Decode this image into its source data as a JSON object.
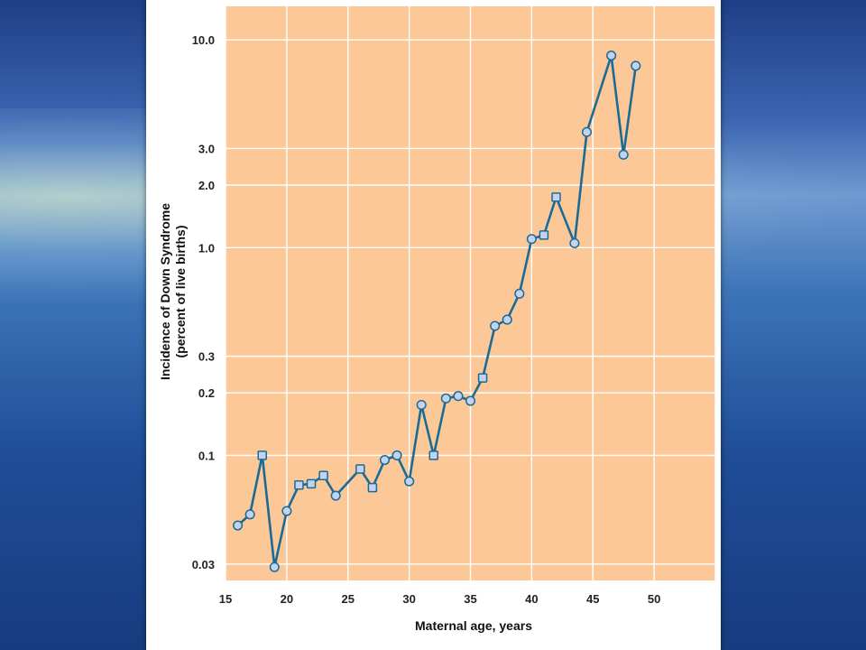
{
  "chart_data": {
    "type": "line",
    "xlabel": "Maternal age, years",
    "ylabel": "Incidence of Down Syndrome",
    "ylabel_sub": "(percent of live births)",
    "y_scale": "log",
    "xlim": [
      15,
      55
    ],
    "ylim": [
      0.025,
      14.5
    ],
    "x_ticks": [
      15,
      20,
      25,
      30,
      35,
      40,
      45,
      50
    ],
    "x_tick_labels": [
      "15",
      "20",
      "25",
      "30",
      "35",
      "40",
      "45",
      "50"
    ],
    "y_ticks": [
      0.03,
      0.1,
      0.2,
      0.3,
      1.0,
      2.0,
      3.0,
      10.0
    ],
    "y_tick_labels": [
      "0.03",
      "0.1",
      "0.2",
      "0.3",
      "1.0",
      "2.0",
      "3.0",
      "10.0"
    ],
    "grid": true,
    "colors": {
      "plot_background": "#fcc898",
      "line": "#1a6b96",
      "marker_fill": "#c4d2ee",
      "marker_stroke": "#1a6b96"
    },
    "series": [
      {
        "marker": "circle",
        "points": [
          {
            "x": 16.0,
            "y": 0.046
          },
          {
            "x": 17.0,
            "y": 0.052
          },
          {
            "x": 19.0,
            "y": 0.029
          },
          {
            "x": 20.0,
            "y": 0.054
          },
          {
            "x": 24.0,
            "y": 0.064
          },
          {
            "x": 28.0,
            "y": 0.095
          },
          {
            "x": 29.0,
            "y": 0.1
          },
          {
            "x": 30.0,
            "y": 0.075
          },
          {
            "x": 31.0,
            "y": 0.175
          },
          {
            "x": 33.0,
            "y": 0.188
          },
          {
            "x": 34.0,
            "y": 0.193
          },
          {
            "x": 35.0,
            "y": 0.183
          },
          {
            "x": 37.0,
            "y": 0.42
          },
          {
            "x": 38.0,
            "y": 0.45
          },
          {
            "x": 39.0,
            "y": 0.6
          },
          {
            "x": 40.0,
            "y": 1.1
          },
          {
            "x": 43.5,
            "y": 1.05
          },
          {
            "x": 44.5,
            "y": 3.6
          },
          {
            "x": 46.5,
            "y": 8.4
          },
          {
            "x": 47.5,
            "y": 2.8
          },
          {
            "x": 48.5,
            "y": 7.5
          }
        ]
      },
      {
        "marker": "square",
        "points": [
          {
            "x": 18.0,
            "y": 0.1
          },
          {
            "x": 21.0,
            "y": 0.072
          },
          {
            "x": 22.0,
            "y": 0.073
          },
          {
            "x": 23.0,
            "y": 0.08
          },
          {
            "x": 26.0,
            "y": 0.086
          },
          {
            "x": 27.0,
            "y": 0.07
          },
          {
            "x": 32.0,
            "y": 0.1
          },
          {
            "x": 36.0,
            "y": 0.236
          },
          {
            "x": 41.0,
            "y": 1.15
          },
          {
            "x": 42.0,
            "y": 1.75
          }
        ]
      }
    ],
    "line_order_x": [
      16.0,
      17.0,
      18.0,
      19.0,
      20.0,
      21.0,
      22.0,
      23.0,
      24.0,
      26.0,
      27.0,
      28.0,
      29.0,
      30.0,
      31.0,
      32.0,
      33.0,
      34.0,
      35.0,
      36.0,
      37.0,
      38.0,
      39.0,
      40.0,
      41.0,
      42.0,
      43.5,
      44.5,
      46.5,
      47.5,
      48.5
    ]
  }
}
